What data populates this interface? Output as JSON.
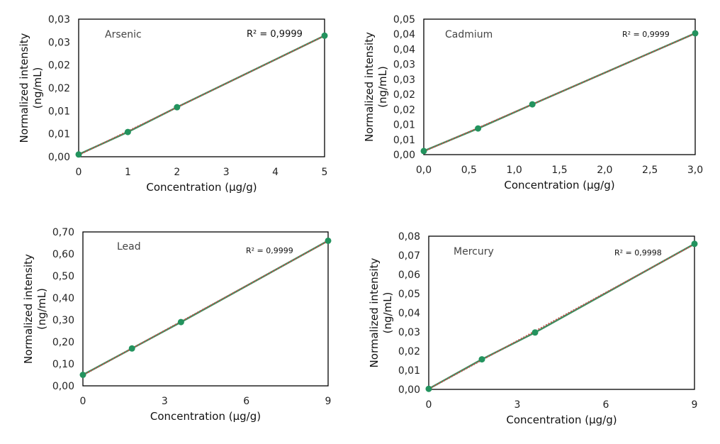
{
  "chart_data": [
    {
      "type": "scatter",
      "name_label": "Arsenic",
      "r2_label": "R² = 0,9999",
      "xlabel": "Concentration (µg/g)",
      "ylabel_lines": [
        "Normalized intensity",
        "(ng/mL)"
      ],
      "xlim": [
        0,
        5
      ],
      "ylim": [
        0,
        0.03
      ],
      "xticks": [
        0,
        1,
        2,
        3,
        4,
        5
      ],
      "xtick_labels": [
        "0",
        "1",
        "2",
        "3",
        "4",
        "5"
      ],
      "yticks": [
        0,
        0.005,
        0.01,
        0.015,
        0.02,
        0.025,
        0.03
      ],
      "ytick_labels": [
        "0,00",
        "0,01",
        "0,01",
        "0,02",
        "0,02",
        "0,03",
        "0,03"
      ],
      "x": [
        0,
        1,
        2,
        5
      ],
      "y": [
        0.0005,
        0.0054,
        0.0108,
        0.0264
      ],
      "trendline": "linear",
      "grid": false
    },
    {
      "type": "scatter",
      "name_label": "Cadmium",
      "r2_label": "R² = 0,9999",
      "xlabel": "Concentration (µg/g)",
      "ylabel_lines": [
        "Normalized intensity",
        "(ng/mL)"
      ],
      "xlim": [
        0,
        3
      ],
      "ylim": [
        0,
        0.045
      ],
      "xticks": [
        0,
        0.5,
        1,
        1.5,
        2,
        2.5,
        3
      ],
      "xtick_labels": [
        "0,0",
        "0,5",
        "1,0",
        "1,5",
        "2,0",
        "2,5",
        "3,0"
      ],
      "yticks": [
        0,
        0.005,
        0.01,
        0.015,
        0.02,
        0.025,
        0.03,
        0.035,
        0.04,
        0.045
      ],
      "ytick_labels": [
        "0,00",
        "0,01",
        "0,01",
        "0,02",
        "0,02",
        "0,03",
        "0,03",
        "0,04",
        "0,04",
        "0,05"
      ],
      "x": [
        0,
        0.6,
        1.2,
        3.0
      ],
      "y": [
        0.0012,
        0.0087,
        0.0167,
        0.0403
      ],
      "trendline": "linear",
      "grid": false
    },
    {
      "type": "scatter",
      "name_label": "Lead",
      "r2_label": "R² = 0,9999",
      "xlabel": "Concentration (µg/g)",
      "ylabel_lines": [
        "Normalized intensity",
        "(ng/mL)"
      ],
      "xlim": [
        0,
        9
      ],
      "ylim": [
        0,
        0.7
      ],
      "xticks": [
        0,
        3,
        6,
        9
      ],
      "xtick_labels": [
        "0",
        "3",
        "6",
        "9"
      ],
      "yticks": [
        0,
        0.1,
        0.2,
        0.3,
        0.4,
        0.5,
        0.6,
        0.7
      ],
      "ytick_labels": [
        "0,00",
        "0,10",
        "0,20",
        "0,30",
        "0,40",
        "0,50",
        "0,60",
        "0,70"
      ],
      "x": [
        0,
        1.8,
        3.6,
        9
      ],
      "y": [
        0.05,
        0.17,
        0.29,
        0.66
      ],
      "trendline": "linear",
      "grid": false
    },
    {
      "type": "scatter",
      "name_label": "Mercury",
      "r2_label": "R² = 0,9998",
      "xlabel": "Concentration (µg/g)",
      "ylabel_lines": [
        "Normalized intensity",
        "(ng/mL)"
      ],
      "xlim": [
        0,
        9
      ],
      "ylim": [
        0,
        0.08
      ],
      "xticks": [
        0,
        3,
        6,
        9
      ],
      "xtick_labels": [
        "0",
        "3",
        "6",
        "9"
      ],
      "yticks": [
        0,
        0.01,
        0.02,
        0.03,
        0.04,
        0.05,
        0.06,
        0.07,
        0.08
      ],
      "ytick_labels": [
        "0,00",
        "0,01",
        "0,02",
        "0,03",
        "0,04",
        "0,05",
        "0,06",
        "0,07",
        "0,08"
      ],
      "x": [
        0,
        1.8,
        3.6,
        9
      ],
      "y": [
        0.0003,
        0.0157,
        0.0297,
        0.076
      ],
      "trendline": "linear",
      "grid": false
    }
  ],
  "colors": {
    "marker": "#23935e",
    "line": "#3a8f5f",
    "trendline": "#c0504d",
    "axis": "#000000"
  }
}
